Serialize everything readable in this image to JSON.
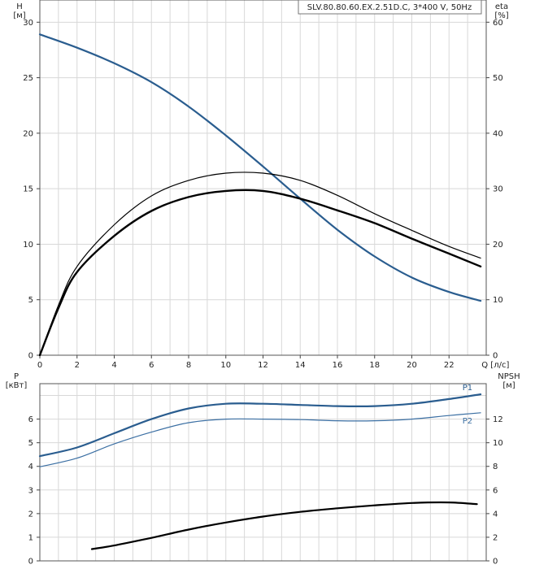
{
  "chart_data": [
    {
      "type": "line",
      "title": "SLV.80.80.60.EX.2.51D.C, 3*400 V, 50Hz",
      "xlabel": "Q [л/с]",
      "ylabel_left": "H\n[м]",
      "ylabel_right": "eta\n[%]",
      "xlim": [
        0,
        24
      ],
      "ylim_left": [
        0,
        32
      ],
      "ylim_right": [
        0,
        64
      ],
      "x_ticks": [
        0,
        2,
        4,
        6,
        8,
        10,
        12,
        14,
        16,
        18,
        20,
        22
      ],
      "y_ticks_left": [
        0,
        5,
        10,
        15,
        20,
        25,
        30
      ],
      "y_ticks_right": [
        0,
        10,
        20,
        30,
        40,
        50,
        60
      ],
      "grid": true,
      "series": [
        {
          "axis": "left",
          "color": "#2a5d8f",
          "width": 2.2,
          "x": [
            0,
            2,
            4,
            6,
            8,
            10,
            12,
            14,
            16,
            18,
            20,
            22,
            23.7
          ],
          "values": [
            28.9,
            27.7,
            26.3,
            24.6,
            22.4,
            19.8,
            17.0,
            14.1,
            11.3,
            8.9,
            7.0,
            5.7,
            4.9
          ]
        },
        {
          "axis": "right",
          "color": "#000000",
          "width": 1.2,
          "x": [
            0,
            1,
            2,
            4,
            6,
            8,
            10,
            12,
            14,
            16,
            18,
            20,
            22,
            23.7
          ],
          "values": [
            0,
            9,
            16,
            23.5,
            28.7,
            31.5,
            32.8,
            32.8,
            31.5,
            28.8,
            25.5,
            22.5,
            19.6,
            17.5
          ]
        },
        {
          "axis": "right",
          "color": "#000000",
          "width": 2.4,
          "x": [
            0,
            1,
            2,
            4,
            6,
            8,
            10,
            12,
            14,
            16,
            18,
            20,
            22,
            23.7
          ],
          "values": [
            0,
            8.5,
            15,
            21.5,
            26,
            28.5,
            29.6,
            29.6,
            28.2,
            26.1,
            23.8,
            21,
            18.3,
            16
          ]
        }
      ]
    },
    {
      "type": "line",
      "ylabel_left": "P\n[кВт]",
      "ylabel_right": "NPSH\n[м]",
      "xlim": [
        0,
        24
      ],
      "ylim_left": [
        0,
        7.5
      ],
      "ylim_right": [
        0,
        15
      ],
      "y_ticks_left": [
        0,
        1,
        2,
        3,
        4,
        5,
        6
      ],
      "y_ticks_right": [
        0,
        2,
        4,
        6,
        8,
        10,
        12
      ],
      "grid": true,
      "series": [
        {
          "name": "P1",
          "axis": "left",
          "color": "#2a5d8f",
          "width": 2.2,
          "x": [
            0,
            2,
            4,
            6,
            8,
            10,
            12,
            14,
            16,
            18,
            20,
            22,
            23.7
          ],
          "values": [
            4.43,
            4.8,
            5.4,
            6.0,
            6.45,
            6.65,
            6.65,
            6.6,
            6.55,
            6.55,
            6.65,
            6.85,
            7.05
          ]
        },
        {
          "name": "P2",
          "axis": "left",
          "color": "#3b6fa3",
          "width": 1.2,
          "x": [
            0,
            2,
            4,
            6,
            8,
            10,
            12,
            14,
            16,
            18,
            20,
            22,
            23.7
          ],
          "values": [
            3.98,
            4.35,
            4.95,
            5.45,
            5.85,
            6.0,
            6.0,
            5.98,
            5.93,
            5.93,
            6.0,
            6.15,
            6.27
          ]
        },
        {
          "axis": "right",
          "color": "#000000",
          "width": 2.2,
          "x": [
            2.8,
            4,
            6,
            8,
            10,
            12,
            14,
            16,
            18,
            20,
            22,
            23.5
          ],
          "values": [
            1.0,
            1.3,
            1.95,
            2.65,
            3.25,
            3.75,
            4.15,
            4.45,
            4.7,
            4.9,
            4.95,
            4.8
          ]
        }
      ]
    }
  ]
}
